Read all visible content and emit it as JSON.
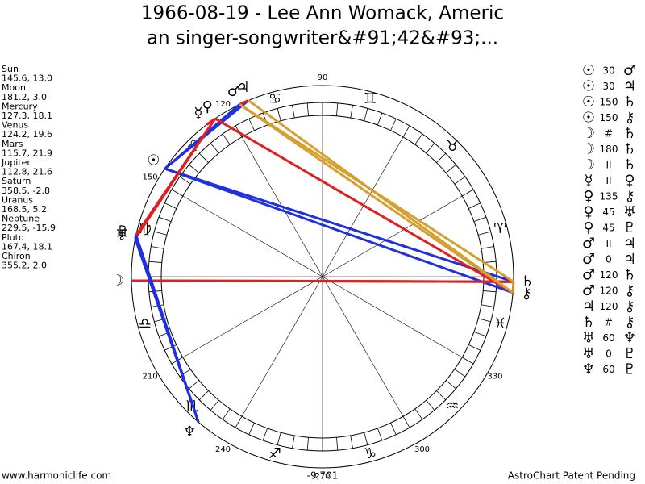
{
  "header": {
    "title_lines": [
      "1966-08-19 - Lee Ann Womack, Americ",
      "an singer-songwriter&#91;42&#93;..."
    ]
  },
  "planets": [
    {
      "name": "Sun",
      "glyph": "☉",
      "position": "145.6, 13.0"
    },
    {
      "name": "Moon",
      "glyph": "☽",
      "position": "181.2, 3.0"
    },
    {
      "name": "Mercury",
      "glyph": "☿",
      "position": "127.3, 18.1"
    },
    {
      "name": "Venus",
      "glyph": "♀",
      "position": "124.2, 19.6"
    },
    {
      "name": "Mars",
      "glyph": "♂",
      "position": "115.7, 21.9"
    },
    {
      "name": "Jupiter",
      "glyph": "♃",
      "position": "112.8, 21.6"
    },
    {
      "name": "Saturn",
      "glyph": "♄",
      "position": "358.5, -2.8"
    },
    {
      "name": "Uranus",
      "glyph": "♅",
      "position": "168.5, 5.2"
    },
    {
      "name": "Neptune",
      "glyph": "♆",
      "position": "229.5, -15.9"
    },
    {
      "name": "Pluto",
      "glyph": "♇",
      "position": "167.4, 18.1"
    },
    {
      "name": "Chiron",
      "glyph": "⚷",
      "position": "355.2, 2.0"
    }
  ],
  "aspects": [
    {
      "p1": "☉",
      "aspect": "30",
      "p2": "♂",
      "color": "#2030e0"
    },
    {
      "p1": "☉",
      "aspect": "30",
      "p2": "♃",
      "color": "#2030e0"
    },
    {
      "p1": "☉",
      "aspect": "150",
      "p2": "♄",
      "color": "#2030e0"
    },
    {
      "p1": "☉",
      "aspect": "150",
      "p2": "⚷",
      "color": "#2030e0"
    },
    {
      "p1": "☽",
      "aspect": "#",
      "p2": "♄",
      "color": "#e08a10"
    },
    {
      "p1": "☽",
      "aspect": "180",
      "p2": "♄",
      "color": "#e02020"
    },
    {
      "p1": "☽",
      "aspect": "II",
      "p2": "♄",
      "color": "#e02020"
    },
    {
      "p1": "☿",
      "aspect": "II",
      "p2": "♀",
      "color": "#e02020"
    },
    {
      "p1": "♀",
      "aspect": "135",
      "p2": "⚷",
      "color": "#e02020"
    },
    {
      "p1": "♀",
      "aspect": "45",
      "p2": "♅",
      "color": "#e02020"
    },
    {
      "p1": "♀",
      "aspect": "45",
      "p2": "♇",
      "color": "#e02020"
    },
    {
      "p1": "♂",
      "aspect": "II",
      "p2": "♃",
      "color": "#e02020"
    },
    {
      "p1": "♂",
      "aspect": "0",
      "p2": "♃",
      "color": "#e02020"
    },
    {
      "p1": "♂",
      "aspect": "120",
      "p2": "♄",
      "color": "#d4a030"
    },
    {
      "p1": "♂",
      "aspect": "120",
      "p2": "⚷",
      "color": "#d4a030"
    },
    {
      "p1": "♃",
      "aspect": "120",
      "p2": "⚷",
      "color": "#d4a030"
    },
    {
      "p1": "♄",
      "aspect": "#",
      "p2": "⚷",
      "color": "#e08a10"
    },
    {
      "p1": "♅",
      "aspect": "60",
      "p2": "♆",
      "color": "#2030e0"
    },
    {
      "p1": "♅",
      "aspect": "0",
      "p2": "♇",
      "color": "#2030e0"
    },
    {
      "p1": "♆",
      "aspect": "60",
      "p2": "♇",
      "color": "#2030e0"
    }
  ],
  "wheel": {
    "degree_labels": [
      90,
      120,
      150,
      210,
      240,
      270,
      300,
      330
    ],
    "signs": [
      "♈",
      "♉",
      "♊",
      "♋",
      "♌",
      "♍",
      "♎",
      "♏",
      "♐",
      "♑",
      "♒",
      "♓"
    ]
  },
  "footer": {
    "site": "www.harmoniclife.com",
    "score": "-9,701",
    "notice": "AstroChart Patent Pending"
  }
}
